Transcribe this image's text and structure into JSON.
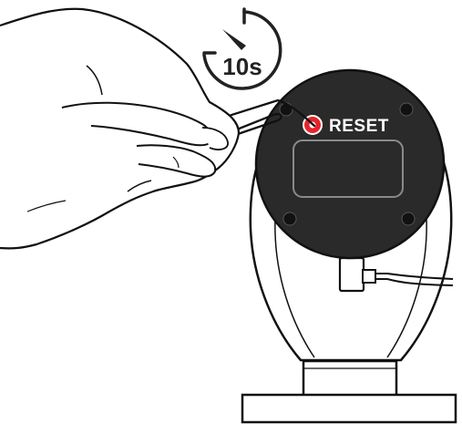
{
  "timer": {
    "label": "10s",
    "icon": "stopwatch-icon"
  },
  "reset": {
    "label": "RESET",
    "icon": "reset-button-icon",
    "accent": "#e8232a"
  },
  "colors": {
    "body": "#2a2a2a",
    "outline": "#111111",
    "background": "#ffffff"
  }
}
